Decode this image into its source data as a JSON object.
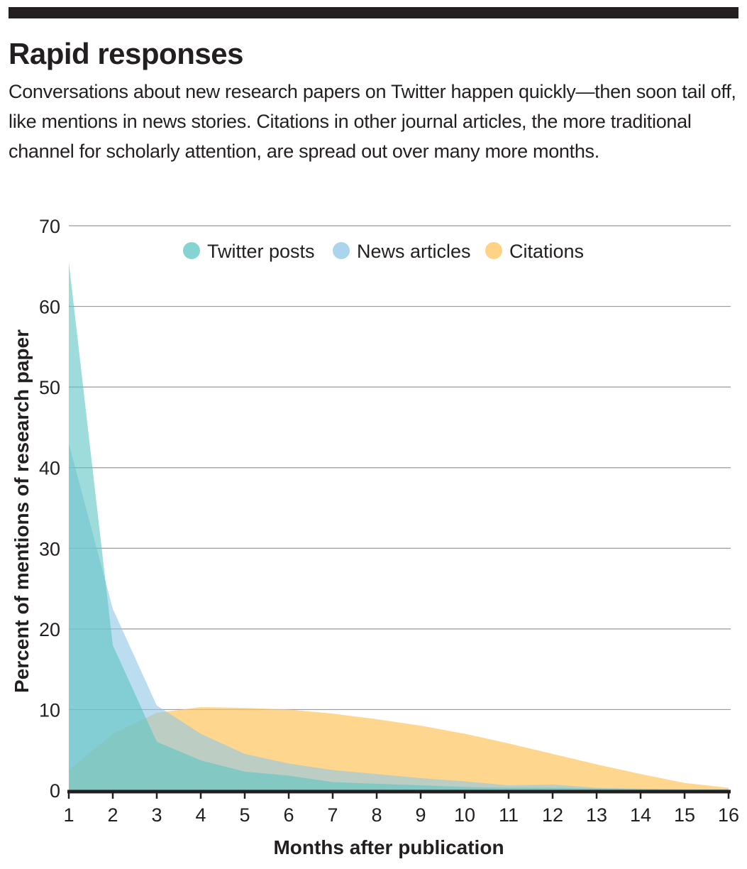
{
  "header": {
    "title": "Rapid responses",
    "subtitle": "Conversations about new research papers on Twitter happen quickly—then soon tail off, like mentions in news stories. Citations in other journal articles, the more traditional channel for scholarly attention, are spread out over many more months."
  },
  "chart_data": {
    "type": "area",
    "title": "Rapid responses",
    "xlabel": "Months after publication",
    "ylabel": "Percent of mentions of research paper",
    "x": [
      1,
      2,
      3,
      4,
      5,
      6,
      7,
      8,
      9,
      10,
      11,
      12,
      13,
      14,
      15,
      16
    ],
    "xlim": [
      1,
      16
    ],
    "ylim": [
      0,
      70
    ],
    "yticks": [
      0,
      10,
      20,
      30,
      40,
      50,
      60,
      70
    ],
    "grid": true,
    "legend_position": "top-center",
    "series": [
      {
        "name": "Citations",
        "color": "#fdc45e",
        "values": [
          2.5,
          7,
          9.6,
          10.3,
          10.2,
          10,
          9.5,
          8.8,
          8,
          7,
          5.8,
          4.5,
          3.2,
          2,
          0.9,
          0.3
        ]
      },
      {
        "name": "News articles",
        "color": "#8fc7e6",
        "values": [
          43,
          22.5,
          10.5,
          7,
          4.5,
          3.3,
          2.5,
          2,
          1.5,
          1.1,
          0.6,
          0.7,
          0.3,
          0.2,
          0.1,
          0.1
        ]
      },
      {
        "name": "Twitter posts",
        "color": "#5ec5c3",
        "values": [
          65.5,
          18,
          6,
          3.7,
          2.3,
          1.8,
          1,
          0.8,
          0.6,
          0.4,
          0.3,
          0.3,
          0.2,
          0.1,
          0.1,
          0.1
        ]
      }
    ],
    "legend_order": [
      "Twitter posts",
      "News articles",
      "Citations"
    ]
  }
}
